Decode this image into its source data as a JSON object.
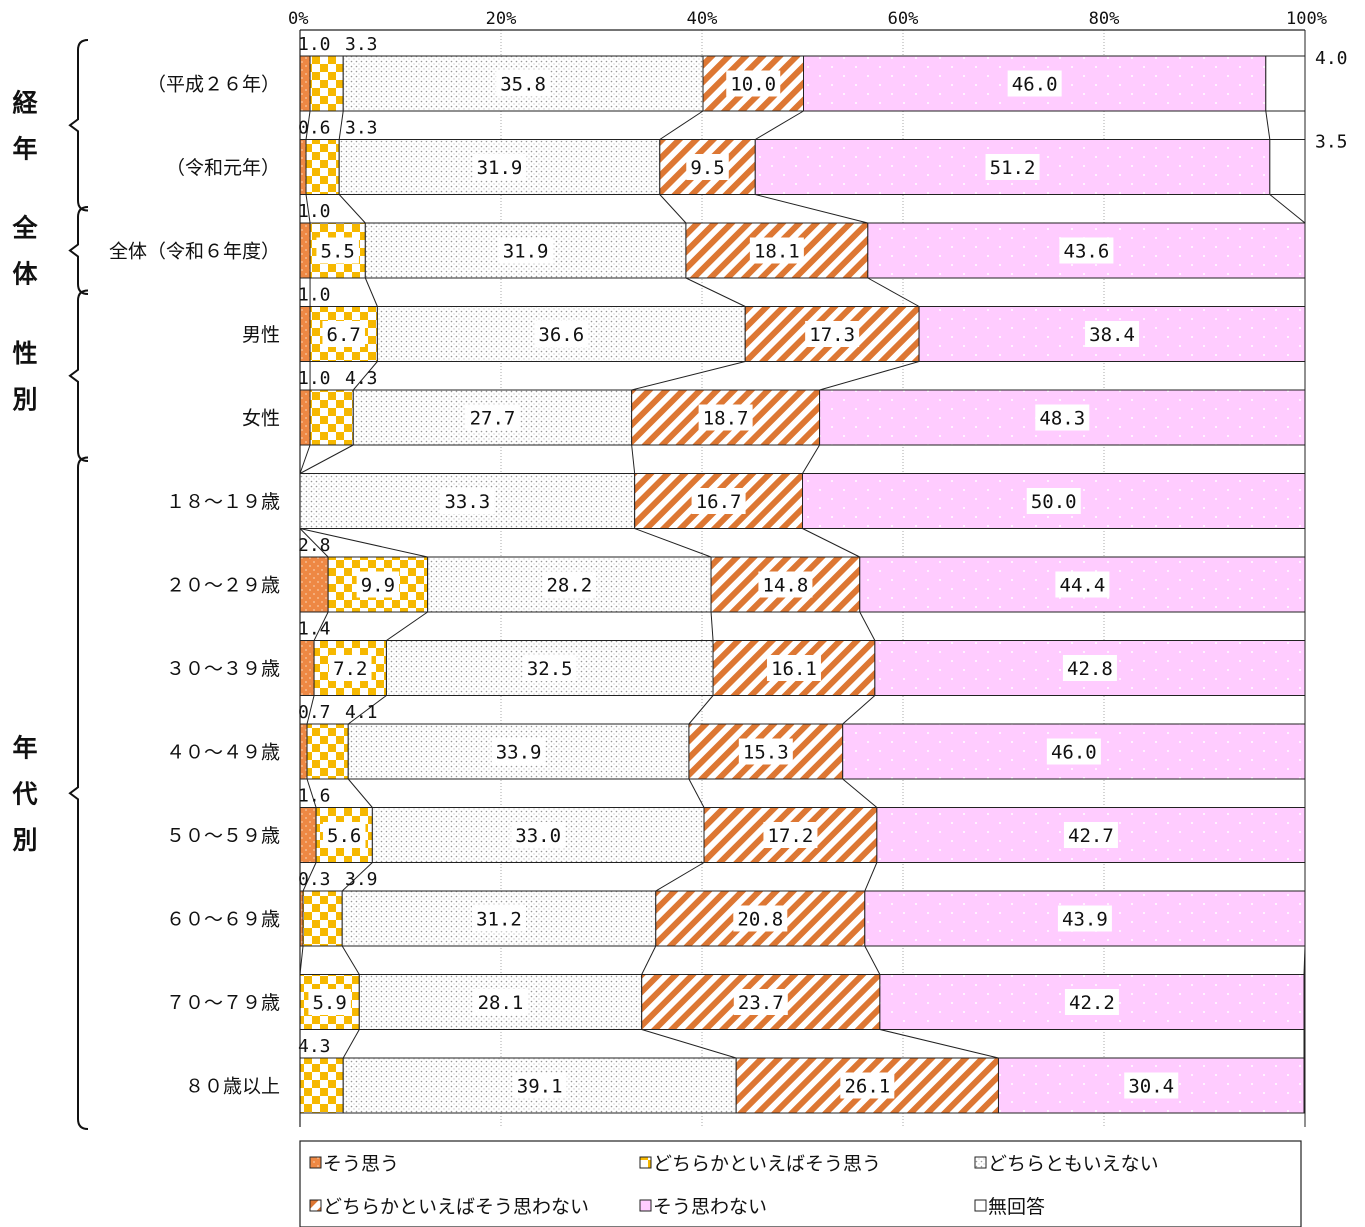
{
  "chart_data": {
    "type": "bar",
    "orientation": "horizontal",
    "stacked": true,
    "xlim": [
      0,
      100
    ],
    "x_ticks": [
      "0%",
      "20%",
      "40%",
      "60%",
      "80%",
      "100%"
    ],
    "grid": true,
    "legend_position": "bottom",
    "series": [
      {
        "name": "そう思う",
        "color": "#ee8844",
        "pattern": "dots-orange"
      },
      {
        "name": "どちらかといえばそう思う",
        "color": "#f6b800",
        "pattern": "checker"
      },
      {
        "name": "どちらともいえない",
        "color": "#bbbbbb",
        "pattern": "dots-gray"
      },
      {
        "name": "どちらかといえばそう思わない",
        "color": "#dd7733",
        "pattern": "diagonal"
      },
      {
        "name": "そう思わない",
        "color": "#ffccff",
        "pattern": "dots-pink"
      },
      {
        "name": "無回答",
        "color": "#ffffff",
        "pattern": "plain"
      }
    ],
    "groups": [
      {
        "label": "経年",
        "rows": [
          0,
          1
        ]
      },
      {
        "label": "全体",
        "rows": [
          2
        ]
      },
      {
        "label": "性別",
        "rows": [
          3,
          4
        ]
      },
      {
        "label": "年代別",
        "rows": [
          5,
          6,
          7,
          8,
          9,
          10,
          11,
          12
        ]
      }
    ],
    "rows": [
      {
        "label": "（平成２６年）",
        "values": [
          1.0,
          3.3,
          35.8,
          10.0,
          46.0,
          4.0
        ],
        "labels": [
          "",
          "",
          "35.8",
          "10.0",
          "46.0",
          ""
        ],
        "above": [
          "1.0",
          "3.3"
        ],
        "right": "4.0"
      },
      {
        "label": "（令和元年）",
        "values": [
          0.6,
          3.3,
          31.9,
          9.5,
          51.2,
          3.5
        ],
        "labels": [
          "",
          "",
          "31.9",
          "9.5",
          "51.2",
          ""
        ],
        "above": [
          "0.6",
          "3.3"
        ],
        "right": "3.5"
      },
      {
        "label": "全体（令和６年度）",
        "values": [
          1.0,
          5.5,
          31.9,
          18.1,
          43.6,
          0
        ],
        "labels": [
          "",
          "5.5",
          "31.9",
          "18.1",
          "43.6",
          ""
        ],
        "above": [
          "1.0"
        ],
        "right": ""
      },
      {
        "label": "男性",
        "values": [
          1.0,
          6.7,
          36.6,
          17.3,
          38.4,
          0
        ],
        "labels": [
          "",
          "6.7",
          "36.6",
          "17.3",
          "38.4",
          ""
        ],
        "above": [
          "1.0"
        ],
        "right": ""
      },
      {
        "label": "女性",
        "values": [
          1.0,
          4.3,
          27.7,
          18.7,
          48.3,
          0
        ],
        "labels": [
          "",
          "",
          "27.7",
          "18.7",
          "48.3",
          ""
        ],
        "above": [
          "1.0",
          "4.3"
        ],
        "right": ""
      },
      {
        "label": "１８～１９歳",
        "values": [
          0,
          0,
          33.3,
          16.7,
          50.0,
          0
        ],
        "labels": [
          "",
          "",
          "33.3",
          "16.7",
          "50.0",
          ""
        ],
        "above": [],
        "right": ""
      },
      {
        "label": "２０～２９歳",
        "values": [
          2.8,
          9.9,
          28.2,
          14.8,
          44.4,
          0
        ],
        "labels": [
          "",
          "9.9",
          "28.2",
          "14.8",
          "44.4",
          ""
        ],
        "above": [
          "2.8"
        ],
        "right": ""
      },
      {
        "label": "３０～３９歳",
        "values": [
          1.4,
          7.2,
          32.5,
          16.1,
          42.8,
          0
        ],
        "labels": [
          "",
          "7.2",
          "32.5",
          "16.1",
          "42.8",
          ""
        ],
        "above": [
          "1.4"
        ],
        "right": ""
      },
      {
        "label": "４０～４９歳",
        "values": [
          0.7,
          4.1,
          33.9,
          15.3,
          46.0,
          0
        ],
        "labels": [
          "",
          "",
          "33.9",
          "15.3",
          "46.0",
          ""
        ],
        "above": [
          "0.7",
          "4.1"
        ],
        "right": ""
      },
      {
        "label": "５０～５９歳",
        "values": [
          1.6,
          5.6,
          33.0,
          17.2,
          42.7,
          0
        ],
        "labels": [
          "",
          "5.6",
          "33.0",
          "17.2",
          "42.7",
          ""
        ],
        "above": [
          "1.6"
        ],
        "right": ""
      },
      {
        "label": "６０～６９歳",
        "values": [
          0.3,
          3.9,
          31.2,
          20.8,
          43.9,
          0
        ],
        "labels": [
          "",
          "",
          "31.2",
          "20.8",
          "43.9",
          ""
        ],
        "above": [
          "0.3",
          "3.9"
        ],
        "right": ""
      },
      {
        "label": "７０～７９歳",
        "values": [
          0,
          5.9,
          28.1,
          23.7,
          42.2,
          0
        ],
        "labels": [
          "",
          "5.9",
          "28.1",
          "23.7",
          "42.2",
          ""
        ],
        "above": [],
        "right": ""
      },
      {
        "label": "８０歳以上",
        "values": [
          0,
          4.3,
          39.1,
          26.1,
          30.4,
          0
        ],
        "labels": [
          "",
          "",
          "39.1",
          "26.1",
          "30.4",
          ""
        ],
        "above": [
          "4.3"
        ],
        "right": ""
      }
    ]
  }
}
